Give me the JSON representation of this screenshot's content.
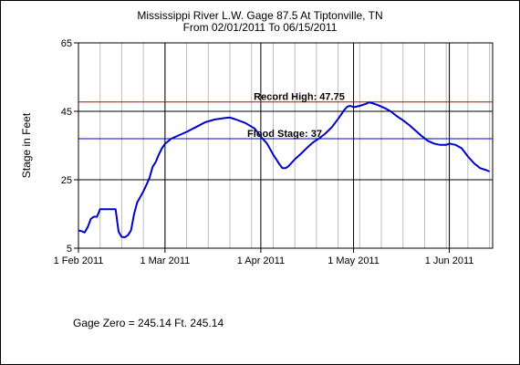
{
  "title": "Mississippi River L.W. Gage 87.5 At Tiptonville, TN",
  "subtitle": "From 02/01/2011 To 06/15/2011",
  "footer": "Gage Zero = 245.14 Ft. 245.14",
  "chart_data": {
    "type": "line",
    "ylabel": "Stage in Feet",
    "xlabel": "",
    "ylim": [
      5,
      65
    ],
    "yticks": [
      5,
      25,
      45,
      65
    ],
    "x_range": [
      "2011-02-01",
      "2011-06-15"
    ],
    "xticks": [
      {
        "date": "2011-02-01",
        "label": "1 Feb 2011"
      },
      {
        "date": "2011-03-01",
        "label": "1 Mar 2011"
      },
      {
        "date": "2011-04-01",
        "label": "1 Apr 2011"
      },
      {
        "date": "2011-05-01",
        "label": "1 May 2011"
      },
      {
        "date": "2011-06-01",
        "label": "1 Jun 2011"
      }
    ],
    "grid": true,
    "legend": "none",
    "reference_lines": [
      {
        "label": "Record High: 47.75",
        "value": 47.75,
        "color": "#cc0000"
      },
      {
        "label": "Flood Stage: 37",
        "value": 37,
        "color": "#0000cc"
      }
    ],
    "series": [
      {
        "color": "#0000cc",
        "points": [
          [
            "2011-02-01",
            10.2
          ],
          [
            "2011-02-02",
            10.0
          ],
          [
            "2011-02-03",
            9.6
          ],
          [
            "2011-02-04",
            11.2
          ],
          [
            "2011-02-05",
            13.6
          ],
          [
            "2011-02-06",
            14.2
          ],
          [
            "2011-02-07",
            14.2
          ],
          [
            "2011-02-08",
            16.4
          ],
          [
            "2011-02-09",
            16.4
          ],
          [
            "2011-02-10",
            16.4
          ],
          [
            "2011-02-11",
            16.4
          ],
          [
            "2011-02-12",
            16.4
          ],
          [
            "2011-02-13",
            16.4
          ],
          [
            "2011-02-14",
            9.8
          ],
          [
            "2011-02-15",
            8.3
          ],
          [
            "2011-02-16",
            8.2
          ],
          [
            "2011-02-17",
            8.8
          ],
          [
            "2011-02-18",
            10.2
          ],
          [
            "2011-02-19",
            15.0
          ],
          [
            "2011-02-20",
            18.4
          ],
          [
            "2011-02-21",
            20.0
          ],
          [
            "2011-02-22",
            21.6
          ],
          [
            "2011-02-23",
            23.5
          ],
          [
            "2011-02-24",
            25.6
          ],
          [
            "2011-02-25",
            28.8
          ],
          [
            "2011-02-26",
            30.2
          ],
          [
            "2011-02-27",
            32.4
          ],
          [
            "2011-02-28",
            34.2
          ],
          [
            "2011-03-01",
            35.5
          ],
          [
            "2011-03-03",
            37.0
          ],
          [
            "2011-03-05",
            37.8
          ],
          [
            "2011-03-08",
            39.0
          ],
          [
            "2011-03-11",
            40.4
          ],
          [
            "2011-03-14",
            41.8
          ],
          [
            "2011-03-17",
            42.6
          ],
          [
            "2011-03-20",
            43.0
          ],
          [
            "2011-03-22",
            43.2
          ],
          [
            "2011-03-24",
            42.6
          ],
          [
            "2011-03-27",
            41.6
          ],
          [
            "2011-03-30",
            40.0
          ],
          [
            "2011-04-01",
            37.6
          ],
          [
            "2011-04-03",
            35.6
          ],
          [
            "2011-04-05",
            32.4
          ],
          [
            "2011-04-07",
            29.6
          ],
          [
            "2011-04-08",
            28.4
          ],
          [
            "2011-04-09",
            28.4
          ],
          [
            "2011-04-10",
            29.0
          ],
          [
            "2011-04-12",
            31.0
          ],
          [
            "2011-04-14",
            32.6
          ],
          [
            "2011-04-16",
            34.4
          ],
          [
            "2011-04-18",
            36.0
          ],
          [
            "2011-04-20",
            37.2
          ],
          [
            "2011-04-22",
            38.6
          ],
          [
            "2011-04-24",
            40.4
          ],
          [
            "2011-04-26",
            42.8
          ],
          [
            "2011-04-28",
            45.4
          ],
          [
            "2011-04-29",
            46.4
          ],
          [
            "2011-04-30",
            46.6
          ],
          [
            "2011-05-01",
            46.2
          ],
          [
            "2011-05-03",
            46.6
          ],
          [
            "2011-05-05",
            47.2
          ],
          [
            "2011-05-06",
            47.6
          ],
          [
            "2011-05-07",
            47.4
          ],
          [
            "2011-05-09",
            46.8
          ],
          [
            "2011-05-11",
            46.0
          ],
          [
            "2011-05-13",
            45.0
          ],
          [
            "2011-05-15",
            43.6
          ],
          [
            "2011-05-17",
            42.4
          ],
          [
            "2011-05-19",
            41.0
          ],
          [
            "2011-05-21",
            39.4
          ],
          [
            "2011-05-23",
            37.8
          ],
          [
            "2011-05-25",
            36.4
          ],
          [
            "2011-05-27",
            35.6
          ],
          [
            "2011-05-29",
            35.2
          ],
          [
            "2011-05-31",
            35.2
          ],
          [
            "2011-06-01",
            35.6
          ],
          [
            "2011-06-03",
            35.2
          ],
          [
            "2011-06-05",
            34.2
          ],
          [
            "2011-06-07",
            31.8
          ],
          [
            "2011-06-09",
            29.8
          ],
          [
            "2011-06-11",
            28.4
          ],
          [
            "2011-06-13",
            27.8
          ],
          [
            "2011-06-14",
            27.4
          ]
        ]
      }
    ]
  }
}
